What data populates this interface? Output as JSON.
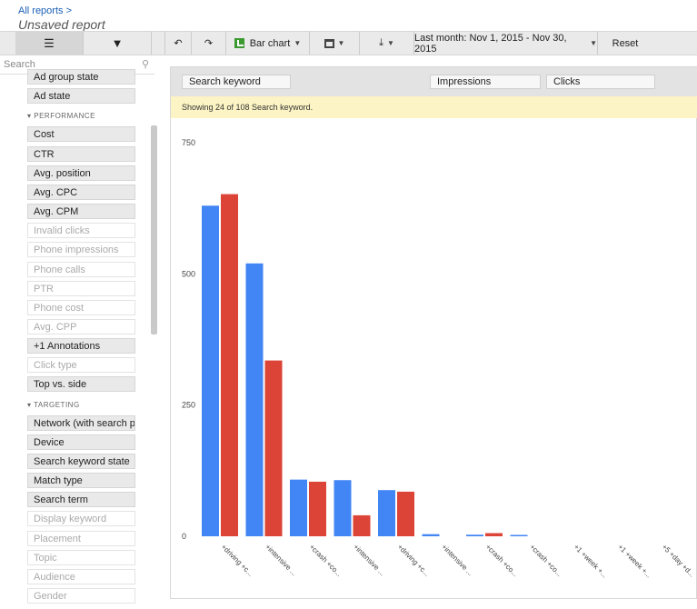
{
  "header": {
    "breadcrumb": "All reports >",
    "title": "Unsaved report"
  },
  "toolbar": {
    "undo_icon": "undo-icon",
    "redo_icon": "redo-icon",
    "chart_label": "Bar chart",
    "date_range": "Last month: Nov 1, 2015 - Nov 30, 2015",
    "reset_label": "Reset",
    "colors": {
      "bar": "#1b8a1b"
    }
  },
  "sidebar": {
    "search_placeholder": "Search",
    "items": [
      {
        "label": "Ad group state",
        "enabled": true
      },
      {
        "label": "Ad state",
        "enabled": true
      },
      {
        "section": "PERFORMANCE"
      },
      {
        "label": "Cost",
        "enabled": true
      },
      {
        "label": "CTR",
        "enabled": true
      },
      {
        "label": "Avg. position",
        "enabled": true
      },
      {
        "label": "Avg. CPC",
        "enabled": true
      },
      {
        "label": "Avg. CPM",
        "enabled": true
      },
      {
        "label": "Invalid clicks",
        "enabled": false
      },
      {
        "label": "Phone impressions",
        "enabled": false
      },
      {
        "label": "Phone calls",
        "enabled": false
      },
      {
        "label": "PTR",
        "enabled": false
      },
      {
        "label": "Phone cost",
        "enabled": false
      },
      {
        "label": "Avg. CPP",
        "enabled": false
      },
      {
        "label": "+1 Annotations",
        "enabled": true
      },
      {
        "label": "Click type",
        "enabled": false
      },
      {
        "label": "Top vs. side",
        "enabled": true
      },
      {
        "section": "TARGETING"
      },
      {
        "label": "Network (with search partners)",
        "enabled": true
      },
      {
        "label": "Device",
        "enabled": true
      },
      {
        "label": "Search keyword state",
        "enabled": true
      },
      {
        "label": "Match type",
        "enabled": true
      },
      {
        "label": "Search term",
        "enabled": true
      },
      {
        "label": "Display keyword",
        "enabled": false
      },
      {
        "label": "Placement",
        "enabled": false
      },
      {
        "label": "Topic",
        "enabled": false
      },
      {
        "label": "Audience",
        "enabled": false
      },
      {
        "label": "Gender",
        "enabled": false
      }
    ]
  },
  "main": {
    "columns": {
      "dimension": "Search keyword",
      "metric1": "Impressions",
      "metric2": "Clicks"
    },
    "notice": "Showing 24 of 108 Search keyword."
  },
  "chart_data": {
    "type": "bar",
    "categories": [
      "+driving +c...",
      "+intensive ...",
      "+crash +co...",
      "+intensive ...",
      "+driving +c...",
      "+intensive ...",
      "+crash +co...",
      "+crash +co...",
      "+1 +week +...",
      "+1 +week +...",
      "+5 +day +d..."
    ],
    "series": [
      {
        "name": "Impressions",
        "color": "#4285f4",
        "values": [
          630,
          520,
          108,
          107,
          88,
          4,
          3,
          2,
          0,
          0,
          0
        ]
      },
      {
        "name": "Clicks",
        "color": "#db4437",
        "values": [
          652,
          335,
          104,
          40,
          85,
          0,
          6,
          0,
          0,
          0,
          0
        ]
      }
    ],
    "yticks": [
      0,
      250,
      500,
      750
    ],
    "ylim": [
      0,
      750
    ]
  }
}
